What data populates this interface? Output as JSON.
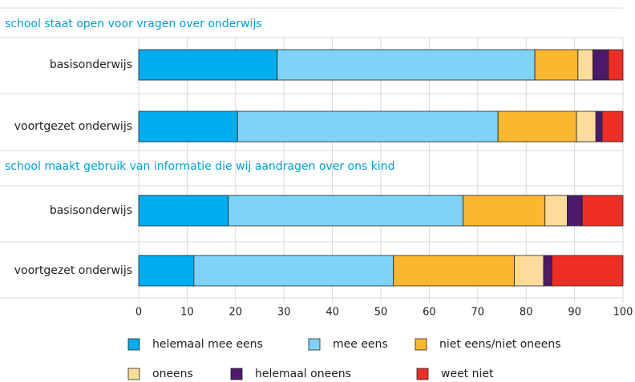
{
  "chart_data": {
    "type": "bar",
    "stacked": true,
    "orientation": "horizontal",
    "groups": [
      {
        "title": "school staat open voor vragen over onderwijs",
        "categories": [
          "basisonderwijs",
          "voortgezet onderwijs"
        ]
      },
      {
        "title": "school maakt gebruik van informatie die wij aandragen over ons kind",
        "categories": [
          "basisonderwijs",
          "voortgezet onderwijs"
        ]
      }
    ],
    "series": [
      {
        "name": "helemaal mee eens",
        "color": "#00aeef",
        "values": [
          28.6,
          20.4,
          18.5,
          11.4
        ]
      },
      {
        "name": "mee eens",
        "color": "#7fd3f7",
        "values": [
          53.2,
          53.8,
          48.5,
          41.2
        ]
      },
      {
        "name": "niet eens/niet oneens",
        "color": "#fbb72e",
        "values": [
          8.9,
          16.2,
          16.9,
          25.0
        ]
      },
      {
        "name": "oneens",
        "color": "#fddb9a",
        "values": [
          3.1,
          4.0,
          4.6,
          6.0
        ]
      },
      {
        "name": "helemaal oneens",
        "color": "#4b1a6b",
        "values": [
          3.2,
          1.3,
          3.1,
          1.7
        ]
      },
      {
        "name": "weet niet",
        "color": "#ee2e24",
        "values": [
          3.0,
          4.3,
          8.4,
          14.7
        ]
      }
    ],
    "xlim": [
      0,
      100
    ],
    "xticks": [
      0,
      10,
      20,
      30,
      40,
      50,
      60,
      70,
      80,
      90,
      100
    ],
    "grid": true
  }
}
